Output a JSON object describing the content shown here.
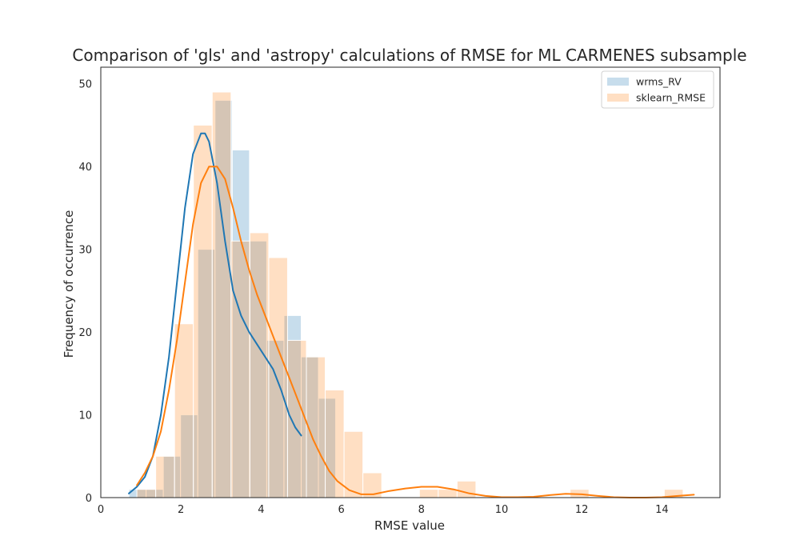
{
  "chart_data": {
    "type": "bar",
    "title": "Comparison of 'gls' and 'astropy' calculations of RMSE for ML CARMENES subsample",
    "xlabel": "RMSE value",
    "ylabel": "Frequency of occurrence",
    "xlim": [
      0,
      15.45
    ],
    "ylim": [
      0,
      52
    ],
    "xticks": [
      0,
      2,
      4,
      6,
      8,
      10,
      12,
      14
    ],
    "yticks": [
      0,
      10,
      20,
      30,
      40,
      50
    ],
    "grid": false,
    "legend_position": "top-right",
    "series": [
      {
        "name": "wrms_RV",
        "color": "#1f77b4",
        "fill_color": "#c6dbef",
        "bin_start": 0.7,
        "bin_width": 0.43,
        "counts": [
          1,
          1,
          5,
          10,
          30,
          48,
          42,
          31,
          19,
          22,
          17,
          12
        ],
        "kde_x": [
          0.7,
          0.9,
          1.1,
          1.3,
          1.5,
          1.7,
          1.9,
          2.1,
          2.3,
          2.5,
          2.6,
          2.7,
          2.9,
          3.1,
          3.3,
          3.5,
          3.7,
          3.9,
          4.1,
          4.3,
          4.5,
          4.7,
          4.85,
          5.0
        ],
        "kde_y": [
          0.5,
          1.3,
          2.5,
          5.0,
          10.0,
          17.0,
          26.0,
          35.0,
          41.5,
          44.0,
          44.0,
          43.0,
          38.0,
          31.0,
          25.0,
          22.0,
          20.0,
          18.5,
          17.0,
          15.5,
          13.0,
          10.0,
          8.5,
          7.5
        ]
      },
      {
        "name": "sklearn_RMSE",
        "color": "#ff7f0e",
        "fill_color": "#ffd7b4",
        "bin_start": 0.9,
        "bin_width": 0.47,
        "counts": [
          1,
          5,
          21,
          45,
          49,
          31,
          32,
          29,
          19,
          17,
          13,
          8,
          3,
          0,
          0,
          1,
          1,
          2,
          0,
          0,
          0,
          0,
          0,
          1,
          0,
          0,
          0,
          0,
          1
        ],
        "kde_x": [
          0.9,
          1.1,
          1.3,
          1.5,
          1.7,
          1.9,
          2.1,
          2.3,
          2.5,
          2.7,
          2.9,
          3.1,
          3.3,
          3.5,
          3.7,
          3.9,
          4.1,
          4.3,
          4.5,
          4.7,
          4.9,
          5.1,
          5.3,
          5.5,
          5.7,
          5.9,
          6.2,
          6.5,
          6.8,
          7.2,
          7.6,
          8.0,
          8.4,
          8.8,
          9.2,
          9.6,
          10.0,
          10.4,
          10.8,
          11.2,
          11.6,
          12.0,
          12.4,
          12.8,
          13.2,
          13.6,
          14.0,
          14.4,
          14.8
        ],
        "kde_y": [
          1.5,
          3.0,
          5.0,
          8.0,
          13.0,
          19.0,
          26.0,
          33.0,
          38.0,
          40.0,
          40.0,
          38.5,
          35.0,
          31.0,
          27.5,
          24.5,
          22.0,
          19.5,
          17.0,
          14.5,
          12.0,
          9.5,
          7.0,
          5.0,
          3.2,
          2.0,
          0.9,
          0.4,
          0.4,
          0.8,
          1.1,
          1.3,
          1.3,
          1.0,
          0.5,
          0.2,
          0.05,
          0.05,
          0.1,
          0.3,
          0.45,
          0.4,
          0.2,
          0.05,
          0.0,
          0.0,
          0.05,
          0.2,
          0.35
        ]
      }
    ]
  }
}
